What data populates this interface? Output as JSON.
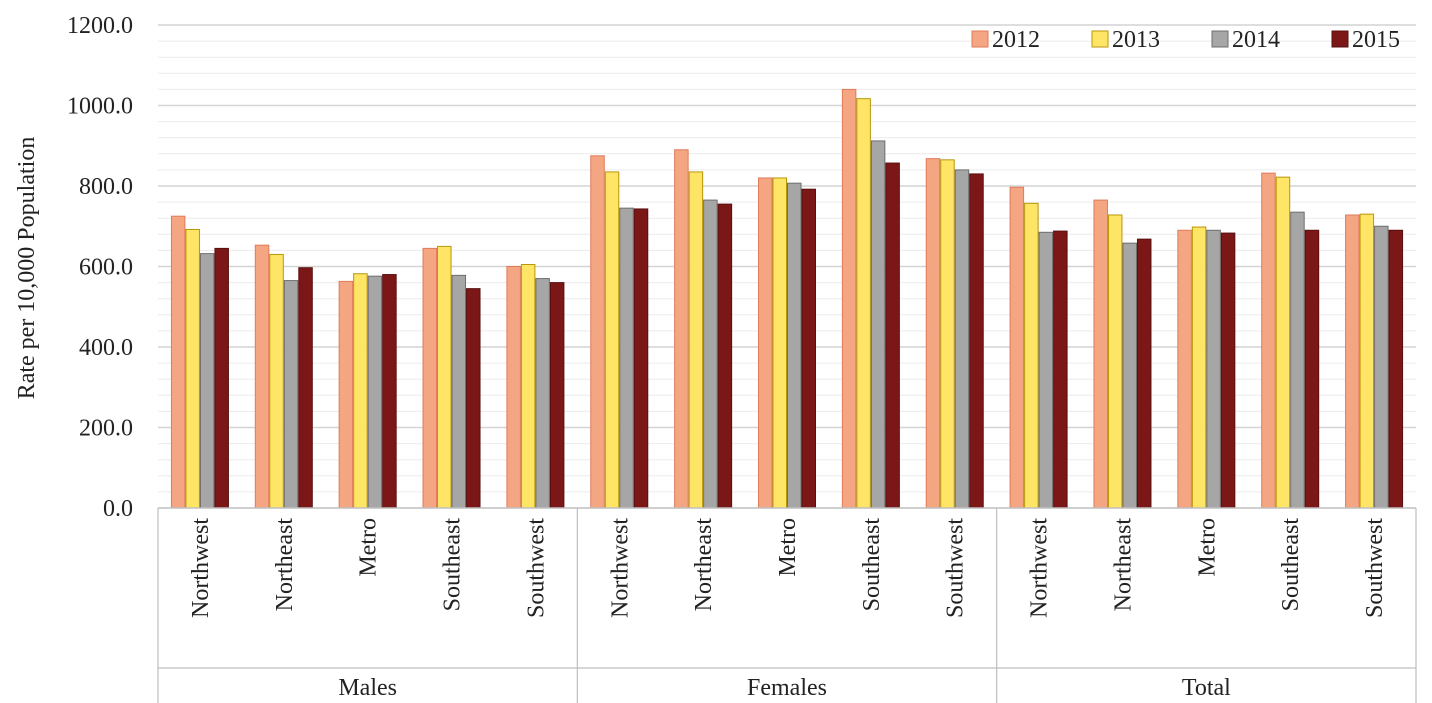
{
  "chart_data": {
    "type": "bar",
    "ylabel": "Rate per 10,000 Population",
    "ylim": [
      0,
      1200
    ],
    "yticks": [
      "0.0",
      "200.0",
      "400.0",
      "600.0",
      "800.0",
      "1000.0",
      "1200.0"
    ],
    "grid": true,
    "legend": "top-right",
    "groups": [
      "Males",
      "Females",
      "Total"
    ],
    "categories": [
      "Northwest",
      "Northeast",
      "Metro",
      "Southeast",
      "Southwest"
    ],
    "series": [
      {
        "name": "2012",
        "color": "#f4a582",
        "stroke": "#e07b5a",
        "values": [
          [
            725,
            653,
            563,
            645,
            600
          ],
          [
            875,
            890,
            820,
            1040,
            868
          ],
          [
            797,
            765,
            690,
            832,
            728
          ]
        ]
      },
      {
        "name": "2013",
        "color": "#ffe566",
        "stroke": "#b8960a",
        "values": [
          [
            692,
            630,
            582,
            650,
            605
          ],
          [
            835,
            835,
            820,
            1017,
            865
          ],
          [
            757,
            728,
            698,
            822,
            730
          ]
        ]
      },
      {
        "name": "2014",
        "color": "#a6a6a6",
        "stroke": "#6e6e6e",
        "values": [
          [
            632,
            565,
            576,
            578,
            570
          ],
          [
            745,
            765,
            807,
            912,
            840
          ],
          [
            685,
            658,
            690,
            735,
            700
          ]
        ]
      },
      {
        "name": "2015",
        "color": "#7b1717",
        "stroke": "#5a0f0f",
        "values": [
          [
            645,
            597,
            580,
            545,
            560
          ],
          [
            743,
            755,
            792,
            857,
            830
          ],
          [
            688,
            668,
            683,
            690,
            690
          ]
        ]
      }
    ]
  }
}
